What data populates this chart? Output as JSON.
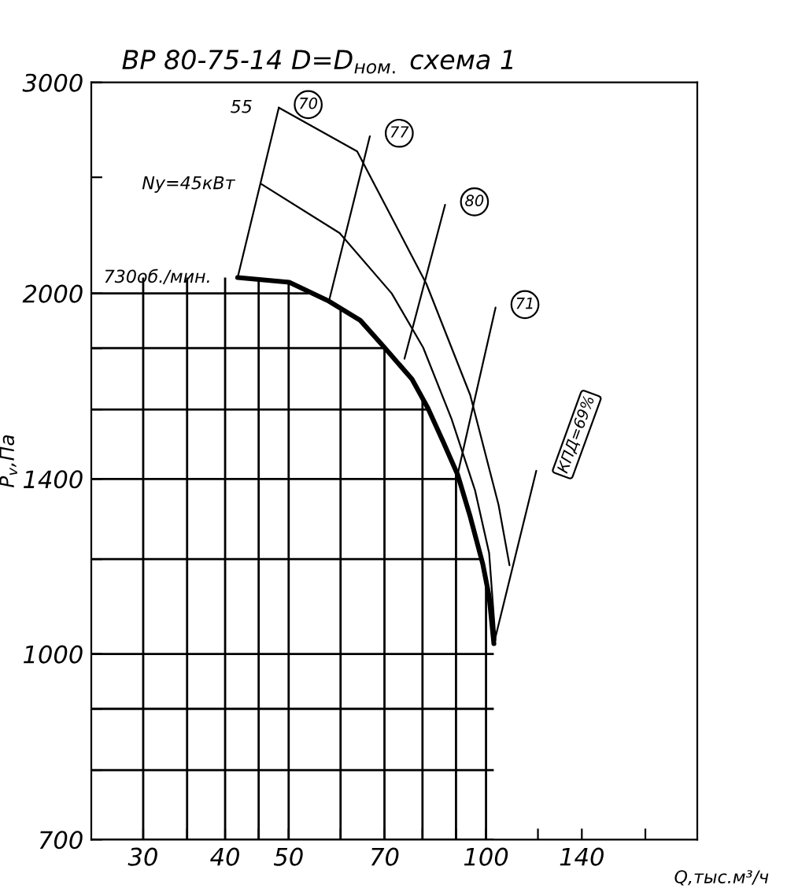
{
  "chart_data": {
    "type": "line",
    "title": "ВР 80-75-14 D=D$_{ном.}$ схема 1",
    "xlabel": "Q,тыс.м³/ч",
    "ylabel": "P$_{v}$,Па",
    "log": "xy",
    "xlim": [
      25,
      210
    ],
    "ylim": [
      700,
      3000
    ],
    "xticks": [
      30,
      {
        "value": 35,
        "label": null
      },
      40,
      {
        "value": 45,
        "label": null
      },
      50,
      {
        "value": 60,
        "label": null
      },
      70,
      {
        "value": 80,
        "label": null
      },
      {
        "value": 90,
        "label": null
      },
      100,
      {
        "value": 120,
        "label": null
      },
      140,
      {
        "value": 175,
        "label": null
      }
    ],
    "yticks": [
      700,
      {
        "value": 800,
        "label": null
      },
      {
        "value": 900,
        "label": null
      },
      1000,
      {
        "value": 1200,
        "label": null
      },
      1400,
      {
        "value": 1600,
        "label": null
      },
      {
        "value": 1800,
        "label": null
      },
      2000,
      {
        "value": 2500,
        "label": null
      },
      3000
    ],
    "grid": true,
    "legend": false,
    "marker": "none",
    "line_style": "solid",
    "series": [
      {
        "name": "730об./мин.",
        "color": "#000000",
        "x": [
          41.8,
          50.1,
          57.6,
          64.3,
          69.9,
          77.1,
          81.5,
          86.1,
          90.5,
          94.6,
          98.9,
          101.1,
          102.8
        ],
        "values": [
          2062,
          2043,
          1970,
          1899,
          1804,
          1696,
          1605,
          1502,
          1412,
          1302,
          1188,
          1117,
          1020
        ]
      },
      {
        "name": "Ny=45кВт",
        "color": "#000000",
        "x": [
          45.4,
          59.8,
          71.8,
          80.2,
          88.6,
          96.2,
          101.1,
          103.4
        ],
        "values": [
          2468,
          2246,
          2000,
          1802,
          1571,
          1370,
          1214,
          1027
        ]
      },
      {
        "name": "55",
        "color": "#000000",
        "x": [
          48.3,
          63.6,
          81.1,
          94.6,
          104.5,
          108.6
        ],
        "values": [
          2858,
          2628,
          2037,
          1645,
          1332,
          1186
        ]
      },
      {
        "name": "70",
        "color": "#000000",
        "x": [
          41.8,
          48.3
        ],
        "values": [
          2062,
          2858
        ]
      },
      {
        "name": "77",
        "color": "#000000",
        "x": [
          57.6,
          66.5
        ],
        "values": [
          1970,
          2705
        ]
      },
      {
        "name": "80",
        "color": "#000000",
        "x": [
          75.1,
          86.6
        ],
        "values": [
          1764,
          2371
        ]
      },
      {
        "name": "71",
        "color": "#000000",
        "x": [
          90.5,
          103.4
        ],
        "values": [
          1412,
          1946
        ]
      },
      {
        "name": "КПД=69%",
        "color": "#000000",
        "x": [
          102.8,
          119.3
        ],
        "values": [
          1020,
          1422
        ]
      }
    ]
  }
}
